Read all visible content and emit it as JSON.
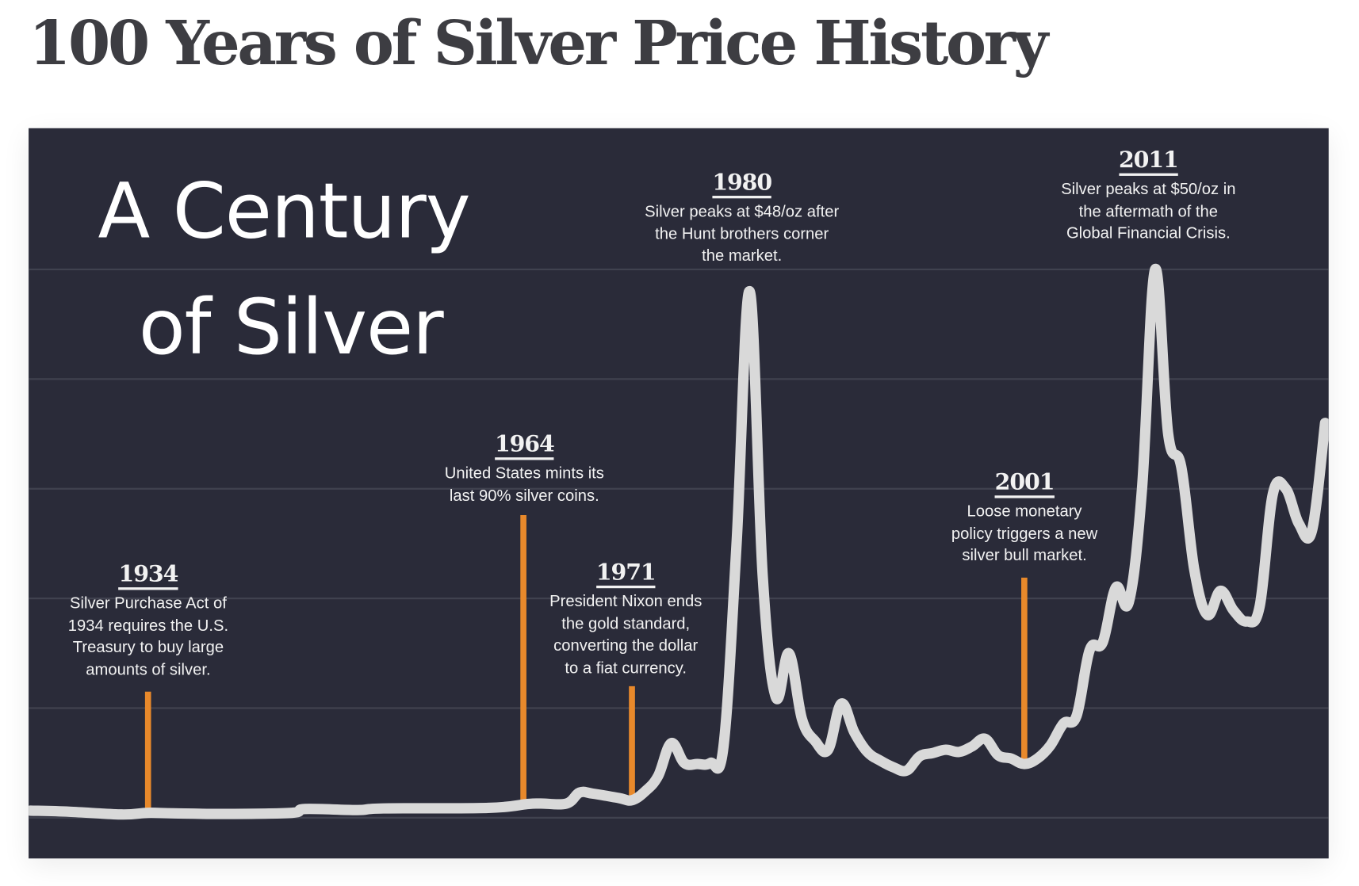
{
  "page_title": "100 Years of Silver Price History",
  "chart_data": {
    "type": "line",
    "title_lines": [
      "A Century",
      "of Silver"
    ],
    "x_range": [
      1925,
      2024
    ],
    "ylim": [
      0,
      50
    ],
    "y_gridlines": [
      0,
      10,
      20,
      30,
      40,
      50
    ],
    "grid": true,
    "unit": "$/oz",
    "colors": {
      "background": "#2a2b39",
      "line": "#d9d9d9",
      "grid": "#40424f",
      "marker": "#e8892b"
    },
    "series": [
      {
        "points": [
          [
            1925,
            0.65
          ],
          [
            1928,
            0.55
          ],
          [
            1932,
            0.3
          ],
          [
            1934,
            0.45
          ],
          [
            1936,
            0.4
          ],
          [
            1940,
            0.35
          ],
          [
            1945,
            0.45
          ],
          [
            1946,
            0.8
          ],
          [
            1950,
            0.7
          ],
          [
            1952,
            0.85
          ],
          [
            1960,
            0.9
          ],
          [
            1963,
            1.25
          ],
          [
            1964,
            1.3
          ],
          [
            1966,
            1.3
          ],
          [
            1967,
            2.3
          ],
          [
            1968,
            2.2
          ],
          [
            1970,
            1.8
          ],
          [
            1971,
            1.6
          ],
          [
            1972,
            2.4
          ],
          [
            1973,
            3.8
          ],
          [
            1974,
            6.8
          ],
          [
            1975,
            5.0
          ],
          [
            1976,
            4.9
          ],
          [
            1977,
            5.0
          ],
          [
            1978,
            6.5
          ],
          [
            1979,
            25
          ],
          [
            1980,
            48
          ],
          [
            1981,
            22
          ],
          [
            1982,
            11
          ],
          [
            1983,
            15
          ],
          [
            1984,
            9
          ],
          [
            1985,
            7
          ],
          [
            1986,
            6.2
          ],
          [
            1987,
            10.4
          ],
          [
            1988,
            7.8
          ],
          [
            1989,
            6
          ],
          [
            1990,
            5.2
          ],
          [
            1991,
            4.6
          ],
          [
            1992,
            4.3
          ],
          [
            1993,
            5.6
          ],
          [
            1994,
            5.9
          ],
          [
            1995,
            6.2
          ],
          [
            1996,
            6
          ],
          [
            1997,
            6.5
          ],
          [
            1998,
            7.2
          ],
          [
            1999,
            5.7
          ],
          [
            2000,
            5.4
          ],
          [
            2001,
            4.9
          ],
          [
            2002,
            5.4
          ],
          [
            2003,
            6.6
          ],
          [
            2004,
            8.6
          ],
          [
            2005,
            9.3
          ],
          [
            2006,
            15.3
          ],
          [
            2007,
            16
          ],
          [
            2008,
            21
          ],
          [
            2009,
            19.7
          ],
          [
            2010,
            30
          ],
          [
            2011,
            50
          ],
          [
            2012,
            35
          ],
          [
            2013,
            32
          ],
          [
            2014,
            22.6
          ],
          [
            2015,
            18.5
          ],
          [
            2016,
            20.7
          ],
          [
            2017,
            18.9
          ],
          [
            2018,
            17.9
          ],
          [
            2019,
            19.3
          ],
          [
            2020,
            29.5
          ],
          [
            2021,
            30
          ],
          [
            2022,
            26.8
          ],
          [
            2023,
            26.2
          ],
          [
            2024,
            36
          ]
        ]
      }
    ],
    "annotations": [
      {
        "year": "1934",
        "marker_year": 1934,
        "marker_top": 11.5,
        "marker_bottom": 0.3,
        "lines": [
          "Silver Purchase Act of",
          "1934 requires the U.S.",
          "Treasury to buy large",
          "amounts of silver."
        ]
      },
      {
        "year": "1964",
        "marker_year": 1962.7,
        "marker_top": 27.6,
        "marker_bottom": 1.3,
        "lines": [
          "United States mints its",
          "last 90% silver coins."
        ]
      },
      {
        "year": "1971",
        "marker_year": 1971,
        "marker_top": 12,
        "marker_bottom": 1.7,
        "lines": [
          "President Nixon ends",
          "the gold standard,",
          "converting the dollar",
          "to a fiat currency."
        ]
      },
      {
        "year": "1980",
        "lines": [
          "Silver peaks at $48/oz after",
          "the Hunt brothers corner",
          "the market."
        ]
      },
      {
        "year": "2001",
        "marker_year": 2001,
        "marker_top": 21.9,
        "marker_bottom": 4.9,
        "lines": [
          "Loose monetary",
          "policy triggers a new",
          "silver bull market."
        ]
      },
      {
        "year": "2011",
        "lines": [
          "Silver peaks at $50/oz in",
          "the aftermath of the",
          "Global Financial Crisis."
        ]
      }
    ]
  }
}
